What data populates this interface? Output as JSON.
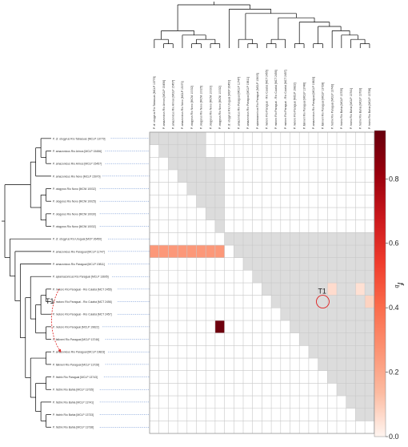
{
  "chart_data": {
    "type": "heatmap",
    "title": "",
    "colorbar": {
      "label": "f_b",
      "label_main": "f",
      "label_sub": "b",
      "ticks": [
        "0.0",
        "0.2",
        "0.4",
        "0.6",
        "0.8"
      ],
      "tick_values": [
        0.0,
        0.2,
        0.4,
        0.6,
        0.8
      ],
      "range": [
        0,
        0.95
      ],
      "colormap": "Reds",
      "colors": [
        "#fff5f0",
        "#fcbba1",
        "#fc9272",
        "#fb6a4a",
        "#ef3b2c",
        "#cb181d",
        "#99000d",
        "#67000d"
      ]
    },
    "taxa": [
      "P. cf. otogyrus Río Tabacuas [MCLP 13779]",
      "P. amazonicus Río Arinos [MCLP 15456]",
      "P. amazonicus Río Arinos [MCLP 15457]",
      "P. amazonicus Río Novo [MCLP 15070]",
      "P. otogyrus Río Novo [MCNI 10032]",
      "P. otogyrus Río Novo [MCNI 10025]",
      "P. otogyrus Río Novo [MCNI 10030]",
      "P. otogyrus Río Novo [MCNI 10032]",
      "P. cf. otogyrus Río Uruguai [MCP 26450]",
      "P. amazonicus Río Paraguai [MCLP 11747]",
      "P. amazonicus Río Paraguai [MCLP 19811]",
      "P. apiamazonicus Río Paraguai [MCLP 13605]",
      "P. motoro Río Paraguai - Río Cuiabá [MCT 2455]",
      "P. motoro Río Paraguai - Río Cuiabá [MCT 2456]",
      "P. motoro Río Paraguai - Río Cuiabá [MCT 2457]",
      "P. motoro Río Paraguai [MCLP 19822]",
      "P. falkneri Río Paraguai [MCLP 13746]",
      "P. amazonicus Río Paraguai [MCLP 19823]",
      "P. falkneri Río Paraguai [MCLP 13728]",
      "P. histrix Río Paraguai [MCLP 13743]",
      "P. histrix Río Bahia [MCLP 13735]",
      "P. histrix Río Bahia [MCLP 13741]",
      "P. histrix Río Bahia [MCLP 13733]",
      "P. histrix Río Bahia [MCLP 13738]"
    ],
    "tree_left": "((((0,(1,2)),3),((4,5),(6,7))),(8,(9,(10,((11,(((12,13),14),(15,16))),((17,18),((19,20),(21,(22,23)))))))))",
    "tree_top": "(((0,(1,2)),(3,((4,5),(6,7)))),(8,((9,(10,11)),(((12,13),14),((15,16),((17,18),(19,(20,(21,(22,23))))))))))",
    "shaded_blocks": [
      [
        0,
        0,
        5,
        0
      ],
      [
        1,
        1,
        5,
        1
      ],
      [
        2,
        2,
        7,
        2
      ],
      [
        3,
        3,
        7,
        3
      ],
      [
        4,
        4,
        7,
        4
      ],
      [
        5,
        5,
        7,
        5
      ],
      [
        6,
        6,
        7,
        6
      ],
      [
        7,
        7,
        7,
        7
      ],
      [
        8,
        8,
        23,
        8
      ],
      [
        9,
        9,
        23,
        9
      ],
      [
        10,
        10,
        23,
        10
      ],
      [
        11,
        11,
        23,
        11
      ],
      [
        12,
        12,
        23,
        12
      ],
      [
        13,
        13,
        23,
        13
      ],
      [
        14,
        14,
        23,
        14
      ],
      [
        15,
        15,
        23,
        15
      ],
      [
        16,
        16,
        23,
        16
      ],
      [
        17,
        17,
        23,
        17
      ],
      [
        18,
        18,
        23,
        18
      ],
      [
        19,
        19,
        23,
        19
      ],
      [
        20,
        20,
        23,
        20
      ],
      [
        21,
        21,
        23,
        21
      ],
      [
        22,
        22,
        23,
        22
      ]
    ],
    "cell_values": [
      {
        "row": 9,
        "col": 0,
        "value": 0.25
      },
      {
        "row": 9,
        "col": 1,
        "value": 0.25
      },
      {
        "row": 9,
        "col": 2,
        "value": 0.25
      },
      {
        "row": 9,
        "col": 3,
        "value": 0.25
      },
      {
        "row": 9,
        "col": 4,
        "value": 0.25
      },
      {
        "row": 9,
        "col": 5,
        "value": 0.25
      },
      {
        "row": 9,
        "col": 6,
        "value": 0.25
      },
      {
        "row": 9,
        "col": 7,
        "value": 0.25
      },
      {
        "row": 12,
        "col": 19,
        "value": 0.06
      },
      {
        "row": 12,
        "col": 22,
        "value": 0.05
      },
      {
        "row": 13,
        "col": 23,
        "value": 0.08
      },
      {
        "row": 15,
        "col": 7,
        "value": 0.93
      }
    ],
    "annotations": [
      {
        "label": "T1",
        "target_row": 13,
        "target_col": 18,
        "style": "circle"
      },
      {
        "label": "T1",
        "from_row": 12,
        "to_row": 17,
        "style": "arrow"
      }
    ]
  }
}
